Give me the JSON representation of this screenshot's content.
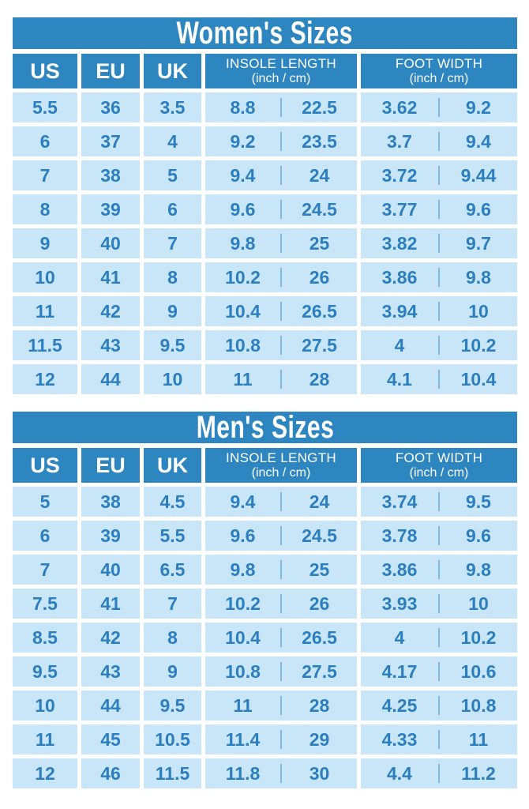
{
  "colors": {
    "background": "#ffffff",
    "header_blue": "#2e86c1",
    "header_text": "#ffffff",
    "cell_light_blue": "#c9e6f8",
    "text_blue": "#2b7fbe",
    "divider_blue": "#7db9e0"
  },
  "headers": {
    "us": "US",
    "eu": "EU",
    "uk": "UK",
    "insole_label": "INSOLE LENGTH",
    "insole_sub": "(inch / cm)",
    "width_label": "FOOT WIDTH",
    "width_sub": "(inch / cm)"
  },
  "chart_data": [
    {
      "type": "table",
      "title": "Women's Sizes",
      "columns": [
        "US",
        "EU",
        "UK",
        "INSOLE LENGTH (inch / cm)",
        "FOOT WIDTH (inch / cm)"
      ],
      "rows": [
        [
          "5.5",
          "36",
          "3.5",
          "8.8",
          "22.5",
          "3.62",
          "9.2"
        ],
        [
          "6",
          "37",
          "4",
          "9.2",
          "23.5",
          "3.7",
          "9.4"
        ],
        [
          "7",
          "38",
          "5",
          "9.4",
          "24",
          "3.72",
          "9.44"
        ],
        [
          "8",
          "39",
          "6",
          "9.6",
          "24.5",
          "3.77",
          "9.6"
        ],
        [
          "9",
          "40",
          "7",
          "9.8",
          "25",
          "3.82",
          "9.7"
        ],
        [
          "10",
          "41",
          "8",
          "10.2",
          "26",
          "3.86",
          "9.8"
        ],
        [
          "11",
          "42",
          "9",
          "10.4",
          "26.5",
          "3.94",
          "10"
        ],
        [
          "11.5",
          "43",
          "9.5",
          "10.8",
          "27.5",
          "4",
          "10.2"
        ],
        [
          "12",
          "44",
          "10",
          "11",
          "28",
          "4.1",
          "10.4"
        ]
      ]
    },
    {
      "type": "table",
      "title": "Men's Sizes",
      "columns": [
        "US",
        "EU",
        "UK",
        "INSOLE LENGTH (inch / cm)",
        "FOOT WIDTH (inch / cm)"
      ],
      "rows": [
        [
          "5",
          "38",
          "4.5",
          "9.4",
          "24",
          "3.74",
          "9.5"
        ],
        [
          "6",
          "39",
          "5.5",
          "9.6",
          "24.5",
          "3.78",
          "9.6"
        ],
        [
          "7",
          "40",
          "6.5",
          "9.8",
          "25",
          "3.86",
          "9.8"
        ],
        [
          "7.5",
          "41",
          "7",
          "10.2",
          "26",
          "3.93",
          "10"
        ],
        [
          "8.5",
          "42",
          "8",
          "10.4",
          "26.5",
          "4",
          "10.2"
        ],
        [
          "9.5",
          "43",
          "9",
          "10.8",
          "27.5",
          "4.17",
          "10.6"
        ],
        [
          "10",
          "44",
          "9.5",
          "11",
          "28",
          "4.25",
          "10.8"
        ],
        [
          "11",
          "45",
          "10.5",
          "11.4",
          "29",
          "4.33",
          "11"
        ],
        [
          "12",
          "46",
          "11.5",
          "11.8",
          "30",
          "4.4",
          "11.2"
        ]
      ]
    }
  ]
}
